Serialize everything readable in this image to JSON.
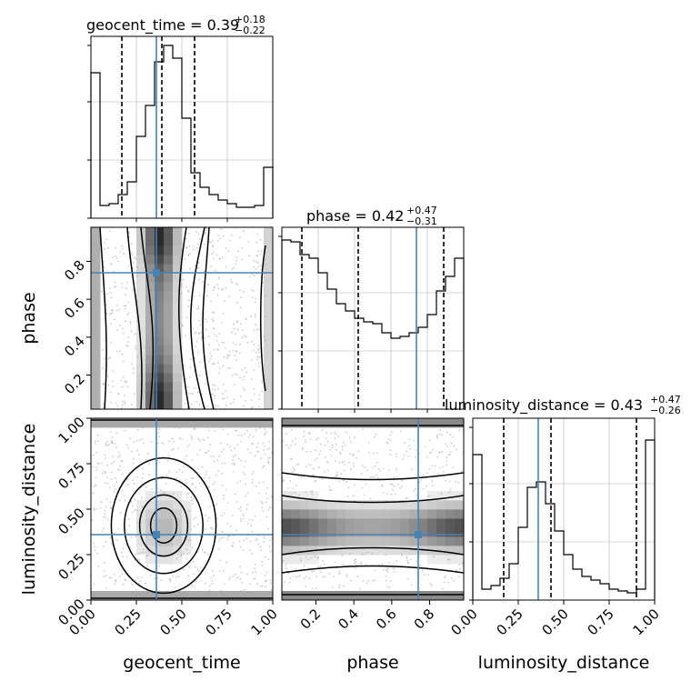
{
  "figure": {
    "type": "corner-plot",
    "parameters": [
      "geocent_time",
      "phase",
      "luminosity_distance"
    ]
  },
  "titles": {
    "geocent_time": {
      "name": "geocent_time",
      "value": "0.39",
      "plus": "+0.18",
      "minus": "−0.22"
    },
    "phase": {
      "name": "phase",
      "value": "0.42",
      "plus": "+0.47",
      "minus": "−0.31"
    },
    "luminosity_distance": {
      "name": "luminosity_distance",
      "value": "0.43",
      "plus": "+0.47",
      "minus": "−0.26"
    }
  },
  "axis_labels": {
    "geocent_time": "geocent_time",
    "phase": "phase",
    "luminosity_distance": "luminosity_distance"
  },
  "chart_data": [
    {
      "type": "histogram",
      "panel": "geocent_time",
      "xlim": [
        0,
        1
      ],
      "bins": [
        0.0,
        0.05,
        0.1,
        0.15,
        0.2,
        0.25,
        0.3,
        0.35,
        0.4,
        0.45,
        0.5,
        0.55,
        0.6,
        0.65,
        0.7,
        0.75,
        0.8,
        0.85,
        0.9,
        0.95,
        1.0
      ],
      "counts": [
        0.8,
        0.07,
        0.08,
        0.13,
        0.2,
        0.45,
        0.62,
        0.86,
        0.95,
        0.88,
        0.55,
        0.25,
        0.17,
        0.13,
        0.1,
        0.08,
        0.06,
        0.06,
        0.07,
        0.28
      ],
      "quantiles": [
        0.17,
        0.39,
        0.57
      ],
      "truth": 0.36,
      "grid": true
    },
    {
      "type": "histogram",
      "panel": "phase",
      "xlim": [
        0,
        1
      ],
      "bins": [
        0.0,
        0.05,
        0.1,
        0.15,
        0.2,
        0.25,
        0.3,
        0.35,
        0.4,
        0.45,
        0.5,
        0.55,
        0.6,
        0.65,
        0.7,
        0.75,
        0.8,
        0.85,
        0.9,
        0.95,
        1.0
      ],
      "counts": [
        0.93,
        0.92,
        0.85,
        0.83,
        0.75,
        0.66,
        0.58,
        0.54,
        0.5,
        0.48,
        0.47,
        0.42,
        0.39,
        0.4,
        0.42,
        0.45,
        0.52,
        0.65,
        0.73,
        0.83
      ],
      "quantiles": [
        0.11,
        0.42,
        0.89
      ],
      "truth": 0.74,
      "xticks": [
        0.2,
        0.4,
        0.6,
        0.8
      ],
      "xticklabels": [
        "0.2",
        "0.4",
        "0.6",
        "0.8"
      ],
      "grid": true
    },
    {
      "type": "histogram",
      "panel": "luminosity_distance",
      "xlim": [
        0,
        1
      ],
      "bins": [
        0.0,
        0.05,
        0.1,
        0.15,
        0.2,
        0.25,
        0.3,
        0.35,
        0.4,
        0.45,
        0.5,
        0.55,
        0.6,
        0.65,
        0.7,
        0.75,
        0.8,
        0.85,
        0.9,
        0.95,
        1.0
      ],
      "counts": [
        0.8,
        0.06,
        0.08,
        0.12,
        0.2,
        0.4,
        0.62,
        0.65,
        0.53,
        0.38,
        0.25,
        0.17,
        0.13,
        0.11,
        0.09,
        0.06,
        0.05,
        0.04,
        0.06,
        0.88
      ],
      "quantiles": [
        0.17,
        0.43,
        0.9
      ],
      "truth": 0.36,
      "xticks": [
        0.0,
        0.25,
        0.5,
        0.75,
        1.0
      ],
      "xticklabels": [
        "0.00",
        "0.25",
        "0.50",
        "0.75",
        "1.00"
      ],
      "grid": true
    },
    {
      "type": "heatmap",
      "panel": "phase vs geocent_time",
      "x": "geocent_time",
      "y": "phase",
      "xlim": [
        0,
        1
      ],
      "ylim": [
        0.02,
        0.98
      ],
      "truth": [
        0.36,
        0.74
      ],
      "yticks": [
        0.2,
        0.4,
        0.6,
        0.8
      ],
      "yticklabels": [
        "0.2",
        "0.4",
        "0.6",
        "0.8"
      ],
      "contour_levels": 4
    },
    {
      "type": "heatmap",
      "panel": "luminosity_distance vs geocent_time",
      "x": "geocent_time",
      "y": "luminosity_distance",
      "xlim": [
        0,
        1
      ],
      "ylim": [
        0,
        1
      ],
      "truth": [
        0.36,
        0.36
      ],
      "xticks": [
        0.0,
        0.25,
        0.5,
        0.75,
        1.0
      ],
      "xticklabels": [
        "0.00",
        "0.25",
        "0.50",
        "0.75",
        "1.00"
      ],
      "yticks": [
        0.0,
        0.25,
        0.5,
        0.75,
        1.0
      ],
      "yticklabels": [
        "0.00",
        "0.25",
        "0.50",
        "0.75",
        "1.00"
      ],
      "contour_levels": 4
    },
    {
      "type": "heatmap",
      "panel": "luminosity_distance vs phase",
      "x": "phase",
      "y": "luminosity_distance",
      "xlim": [
        0.02,
        0.98
      ],
      "ylim": [
        0,
        1
      ],
      "truth": [
        0.74,
        0.36
      ],
      "xticks": [
        0.2,
        0.4,
        0.6,
        0.8
      ],
      "xticklabels": [
        "0.2",
        "0.4",
        "0.6",
        "0.8"
      ],
      "contour_levels": 4
    }
  ],
  "colors": {
    "hist": "#000000",
    "truth": "#4682b4",
    "grid": "#b0b0b0",
    "samples": "#9e9e9e"
  }
}
